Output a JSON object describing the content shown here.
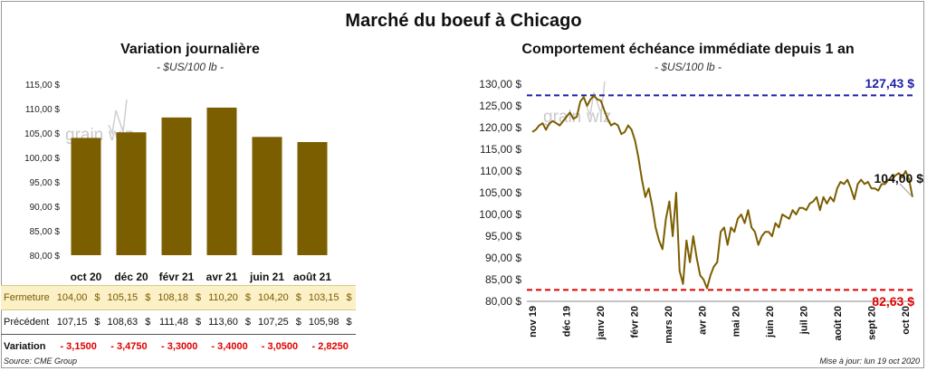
{
  "main_title": "Marché du boeuf à Chicago",
  "left_panel": {
    "title": "Variation journalière",
    "units": "- $US/100 lb -",
    "rows": {
      "close": {
        "label": "Fermeture",
        "values": [
          "104,00",
          "105,15",
          "108,18",
          "110,20",
          "104,20",
          "103,15"
        ]
      },
      "prev": {
        "label": "Précédent",
        "values": [
          "107,15",
          "108,63",
          "111,48",
          "113,60",
          "107,25",
          "105,98"
        ]
      },
      "var": {
        "label": "Variation",
        "values": [
          "- 3,1500",
          "- 3,4750",
          "- 3,3000",
          "- 3,4000",
          "- 3,0500",
          "- 2,8250"
        ]
      }
    },
    "currency": "$"
  },
  "right_panel": {
    "title": "Comportement échéance immédiate depuis 1 an",
    "units": "- $US/100 lb -",
    "max_label": "127,43 $",
    "min_label": "82,63 $",
    "last_label": "104,00 $"
  },
  "footer": {
    "source": "Source: CME Group",
    "updated": "Mise à jour: lun 19 oct 2020"
  },
  "colors": {
    "bar": "#7b5e00",
    "line": "#7b5e00",
    "max_line": "#1e1ea8",
    "min_line": "#e00000"
  },
  "chart_data": [
    {
      "type": "bar",
      "categories": [
        "oct 20",
        "déc 20",
        "févr 21",
        "avr 21",
        "juin 21",
        "août 21"
      ],
      "values": [
        104.0,
        105.15,
        108.18,
        110.2,
        104.2,
        103.15
      ],
      "ylim": [
        80,
        115
      ],
      "yticks": [
        "80,00 $",
        "85,00 $",
        "90,00 $",
        "95,00 $",
        "100,00 $",
        "105,00 $",
        "110,00 $",
        "115,00 $"
      ],
      "grid": false
    },
    {
      "type": "line",
      "x_labels": [
        "nov 19",
        "déc 19",
        "janv 20",
        "févr 20",
        "mars 20",
        "avr 20",
        "mai 20",
        "juin 20",
        "juil 20",
        "août 20",
        "sept 20",
        "oct 20"
      ],
      "values": [
        119,
        119.5,
        120.5,
        121,
        119.5,
        121,
        121.5,
        121,
        120.5,
        121.5,
        122.5,
        123.5,
        122,
        122.5,
        126,
        127,
        125,
        126.5,
        127.3,
        126.5,
        126.2,
        124,
        122,
        120.5,
        121,
        120.5,
        118.5,
        119,
        120.5,
        119.5,
        117,
        113,
        108,
        104,
        106,
        102,
        97,
        94,
        92,
        99,
        103,
        95,
        105,
        87,
        84,
        94,
        89,
        95,
        90,
        86,
        85,
        83,
        86,
        88,
        89,
        96,
        97,
        93,
        97,
        96,
        99,
        100,
        98,
        101,
        97,
        96,
        93,
        95,
        96,
        96,
        95,
        98,
        97,
        100,
        99.5,
        99,
        101,
        100,
        101.5,
        101.5,
        101,
        102.5,
        103,
        104,
        101,
        104,
        102.5,
        104,
        103,
        106,
        107.5,
        107,
        108,
        106,
        103.5,
        107,
        108,
        107,
        107.5,
        106,
        106,
        105.5,
        107,
        107,
        108,
        108,
        109,
        109.5,
        108.5,
        110,
        108,
        104
      ],
      "ylim": [
        80,
        130
      ],
      "yticks": [
        "80,00 $",
        "85,00 $",
        "90,00 $",
        "95,00 $",
        "100,00 $",
        "105,00 $",
        "110,00 $",
        "115,00 $",
        "120,00 $",
        "125,00 $",
        "130,00 $"
      ],
      "max": 127.43,
      "min": 82.63,
      "last": 104.0,
      "grid": false
    }
  ]
}
